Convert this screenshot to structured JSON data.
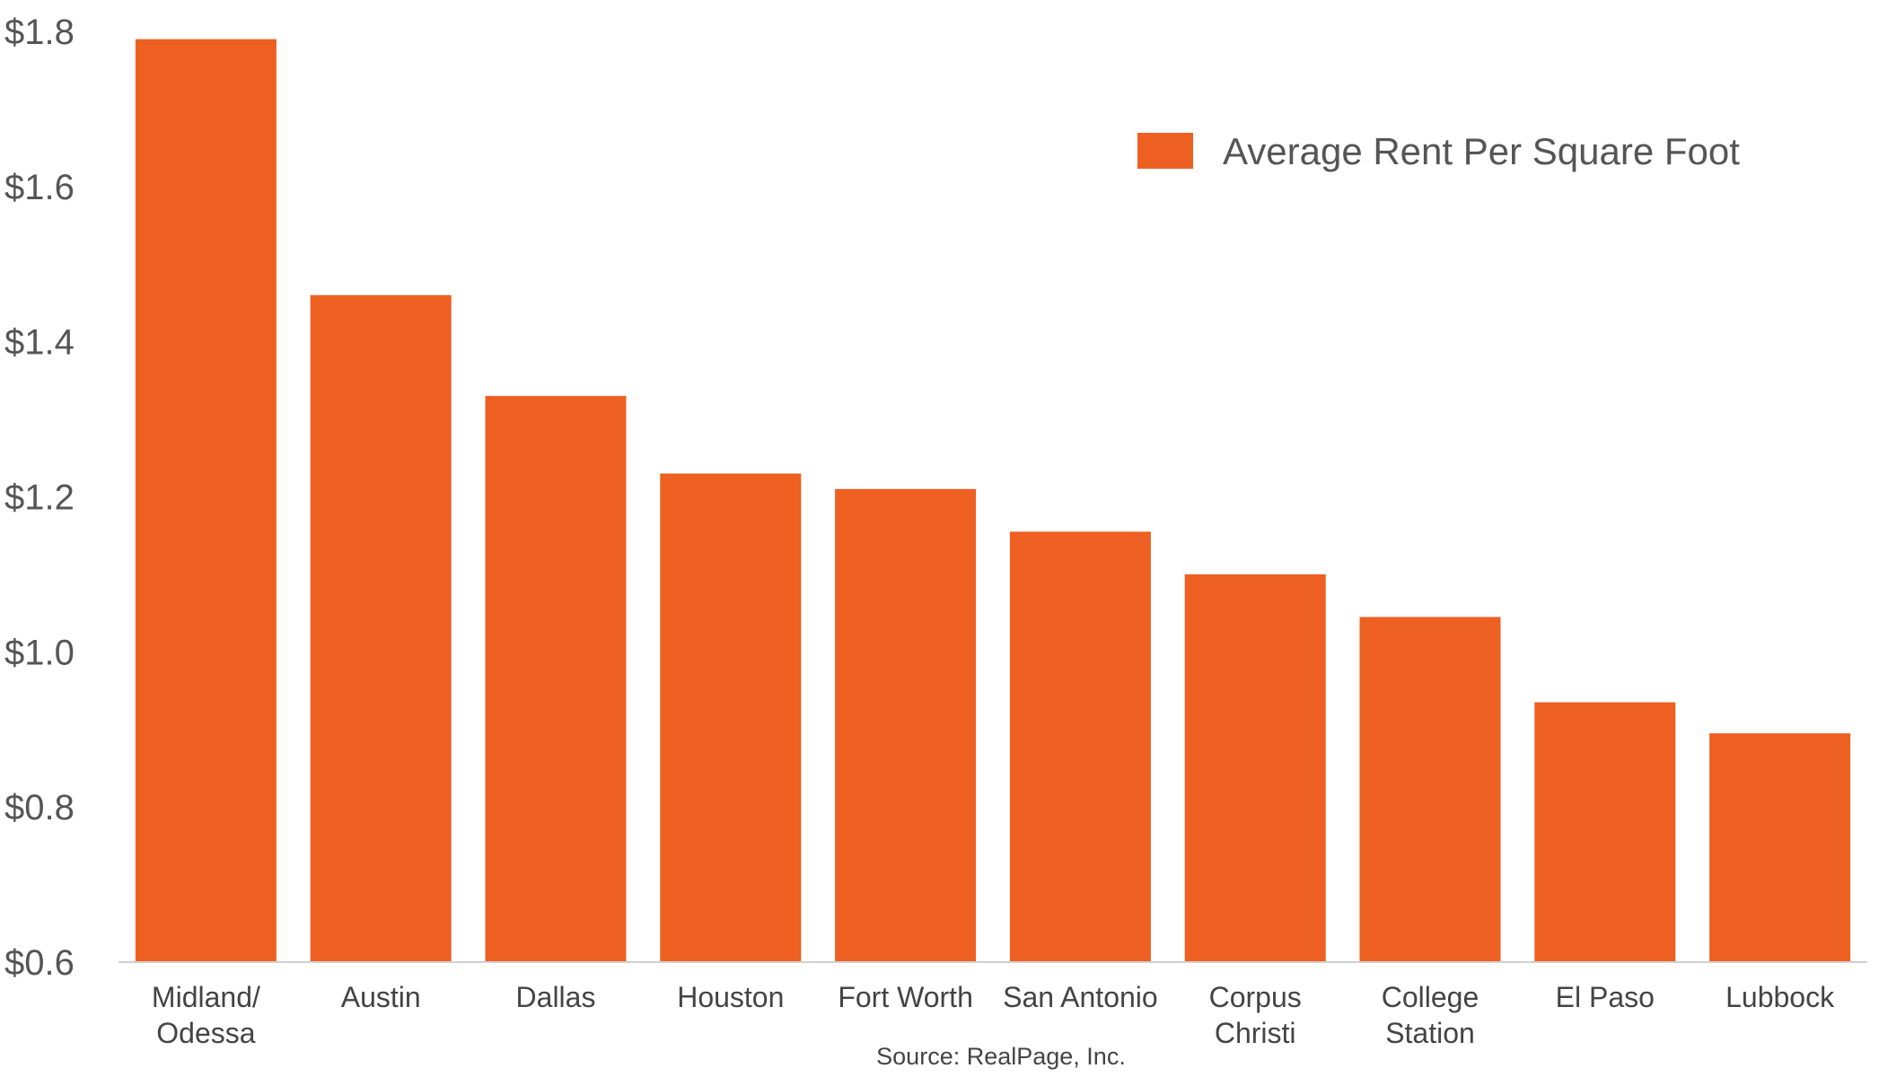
{
  "chart_data": {
    "type": "bar",
    "categories": [
      "Midland/ Odessa",
      "Austin",
      "Dallas",
      "Houston",
      "Fort Worth",
      "San Antonio",
      "Corpus Christi",
      "College Station",
      "El Paso",
      "Lubbock"
    ],
    "category_lines": [
      [
        "Midland/",
        "Odessa"
      ],
      [
        "Austin"
      ],
      [
        "Dallas"
      ],
      [
        "Houston"
      ],
      [
        "Fort Worth"
      ],
      [
        "San Antonio"
      ],
      [
        "Corpus",
        "Christi"
      ],
      [
        "College",
        "Station"
      ],
      [
        "El Paso"
      ],
      [
        "Lubbock"
      ]
    ],
    "series": [
      {
        "name": "Average Rent Per Square Foot",
        "color": "#EE5F22",
        "values": [
          1.79,
          1.46,
          1.33,
          1.23,
          1.21,
          1.155,
          1.1,
          1.045,
          0.935,
          0.895
        ]
      }
    ],
    "ylim": [
      0.6,
      1.8
    ],
    "yticks": [
      0.6,
      0.8,
      1.0,
      1.2,
      1.4,
      1.6,
      1.8
    ],
    "ytick_labels": [
      "$0.6",
      "$0.8",
      "$1.0",
      "$1.2",
      "$1.4",
      "$1.6",
      "$1.8"
    ],
    "title": "",
    "xlabel": "",
    "ylabel": "",
    "grid": false,
    "legend_position": "top-right",
    "source": "Source: RealPage, Inc."
  }
}
